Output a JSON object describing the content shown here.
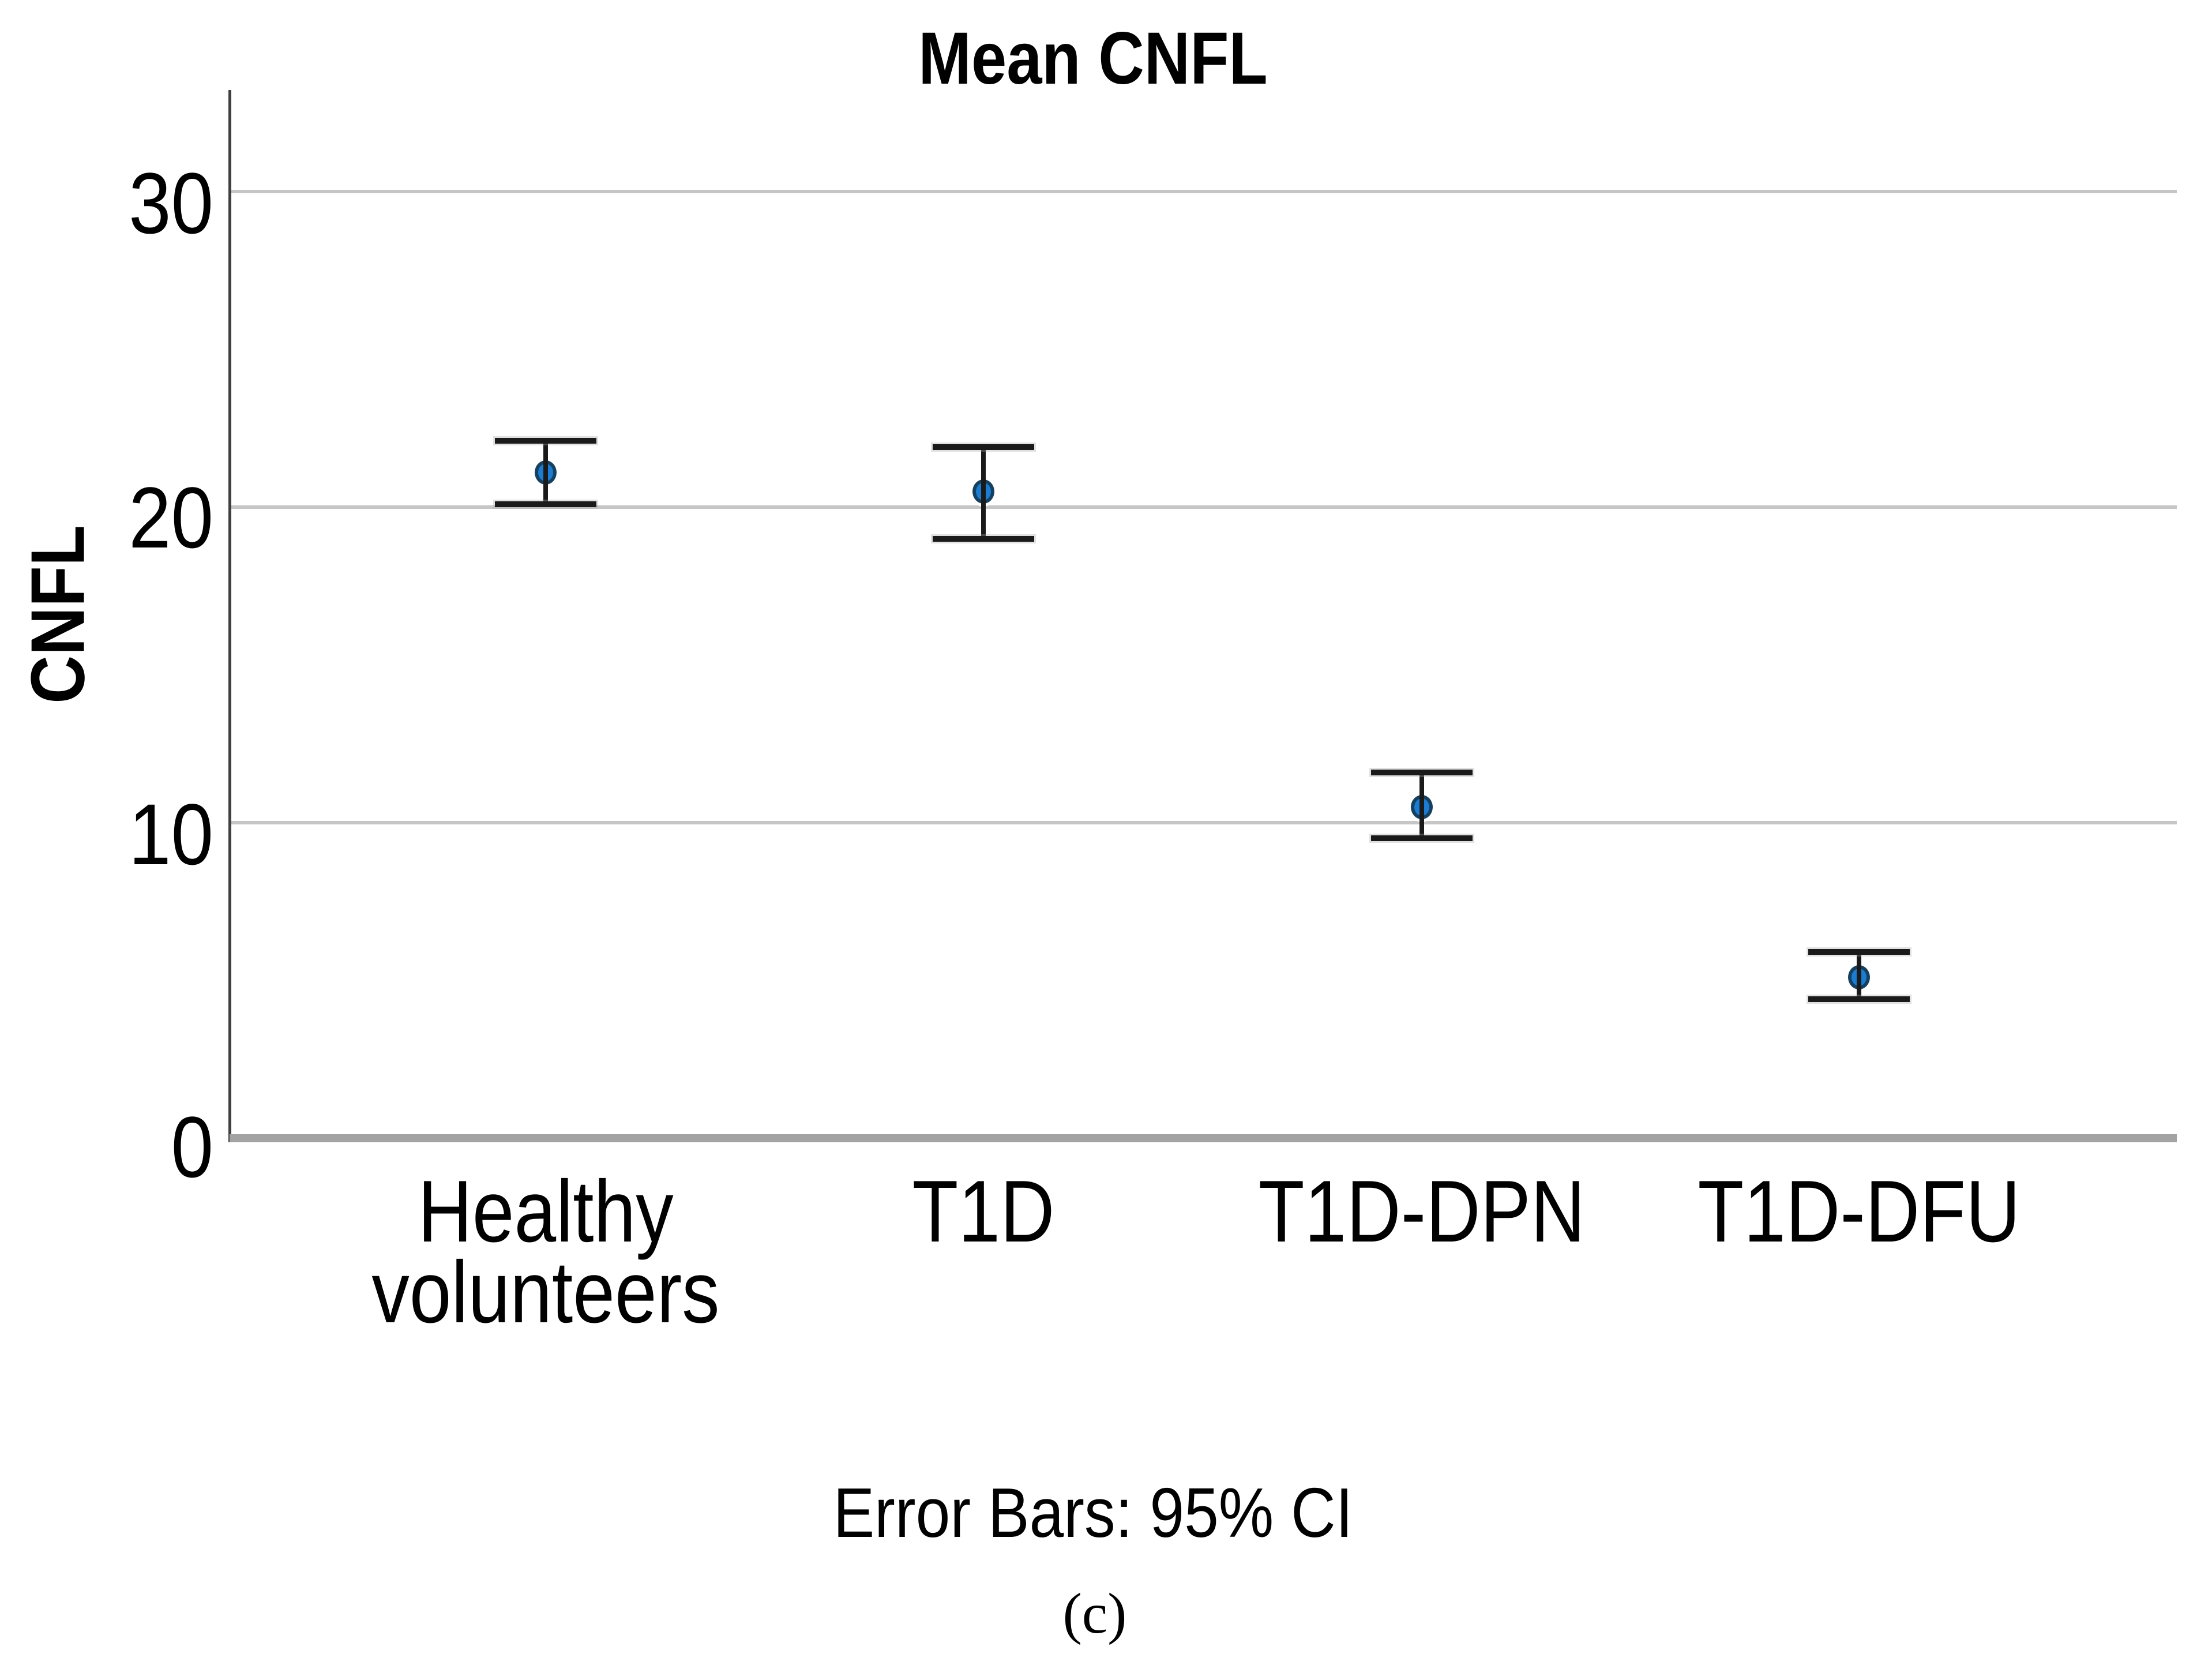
{
  "figure": {
    "title": "Mean CNFL",
    "footnote": "Error Bars: 95% CI",
    "subcaption": "(c)"
  },
  "chart_data": {
    "type": "scatter",
    "subtype": "mean-with-95ci-error-bars",
    "title": "Mean CNFL",
    "ylabel": "CNFL",
    "xlabel": "",
    "categories": [
      "Healthy volunteers",
      "T1D",
      "T1D-DPN",
      "T1D-DFU"
    ],
    "category_label_lines": [
      [
        "Healthy",
        "volunteers"
      ],
      [
        "T1D"
      ],
      [
        "T1D-DPN"
      ],
      [
        "T1D-DFU"
      ]
    ],
    "series": [
      {
        "name": "Mean CNFL",
        "means": [
          21.1,
          20.5,
          10.5,
          5.1
        ],
        "ci_low": [
          20.1,
          19.0,
          9.5,
          4.4
        ],
        "ci_high": [
          22.1,
          21.9,
          11.6,
          5.9
        ]
      }
    ],
    "yticks": [
      0,
      10,
      20,
      30
    ],
    "ytick_labels": [
      "0",
      "10",
      "20",
      "30"
    ],
    "ylim": [
      0,
      33.2
    ],
    "grid": "horizontal",
    "legend": "none",
    "footnote": "Error Bars: 95% CI",
    "colors": {
      "marker_fill": "#1b7cd2",
      "marker_stroke": "#16405f",
      "error_bar": "#1a1a1a",
      "gridline": "#c6c6c6",
      "y_axis_line": "#404040",
      "x_axis_line": "#a3a3a3",
      "text": "#000000"
    }
  }
}
